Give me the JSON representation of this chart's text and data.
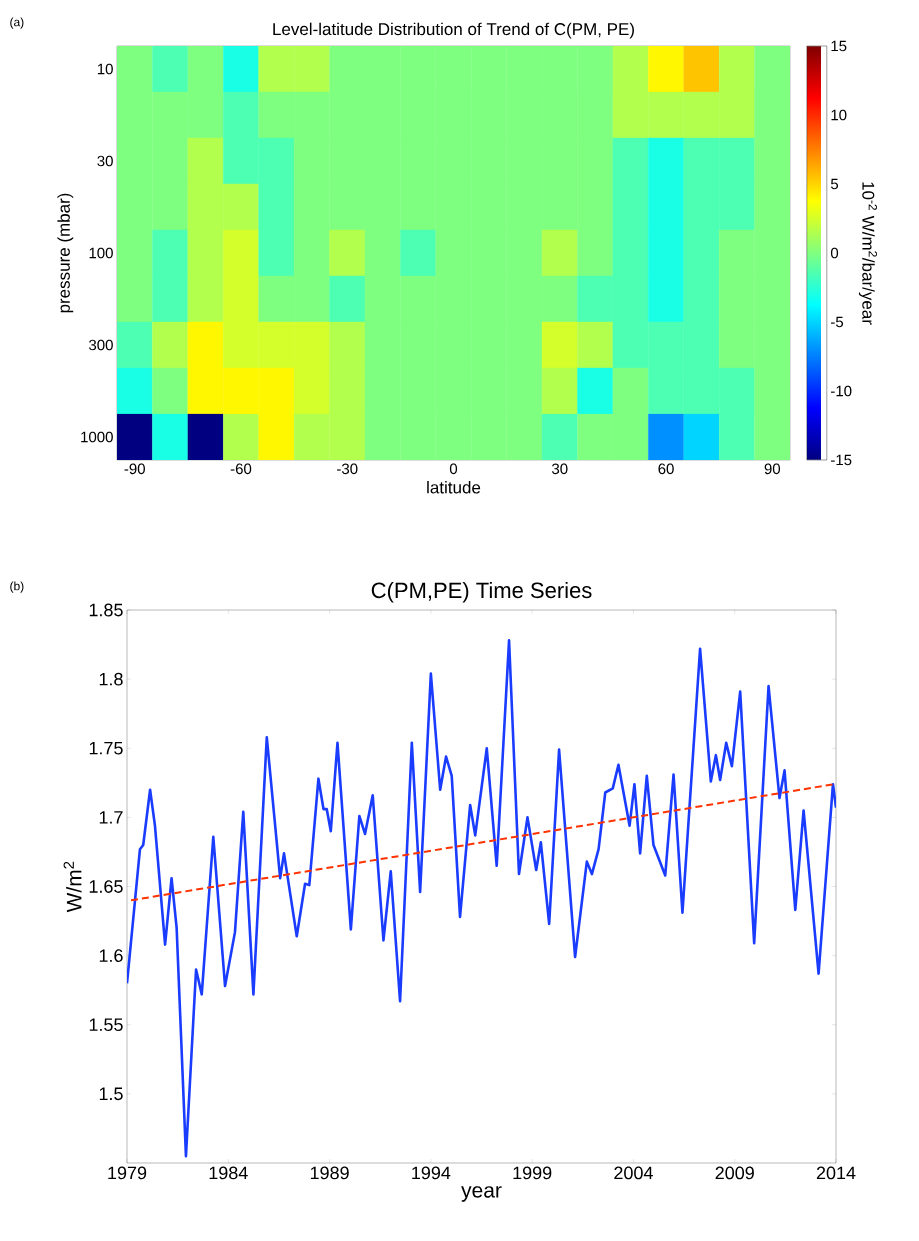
{
  "chart_data": [
    {
      "type": "heatmap",
      "title": "Level-latitude Distribution of Trend of C(PM, PE)",
      "xlabel": "latitude",
      "ylabel": "pressure (mbar)",
      "clabel": "10$^{-2}$ W/m$^{2}$/bar/year",
      "annotations": [
        "(a)"
      ],
      "categories": [
        "-90",
        null,
        null,
        "-60",
        null,
        null,
        "-30",
        null,
        null,
        "0",
        null,
        null,
        "30",
        null,
        null,
        "60",
        null,
        null,
        "90"
      ],
      "y_categories": [
        "10",
        null,
        "30",
        null,
        "100",
        null,
        "300",
        null,
        "1000"
      ],
      "cells": [
        [
          0,
          -1.5,
          0,
          -3,
          1.5,
          1.5,
          0,
          0,
          0,
          0,
          0,
          0,
          0,
          0,
          1.5,
          4,
          5.5,
          1.5,
          0
        ],
        [
          0,
          0,
          0,
          -1.5,
          0,
          0,
          0,
          0,
          0,
          0,
          0,
          0,
          0,
          0,
          1.5,
          1.5,
          1.5,
          1.5,
          0
        ],
        [
          0,
          0,
          1.5,
          -1.5,
          -1.5,
          0,
          0,
          0,
          0,
          0,
          0,
          0,
          0,
          0,
          -1.5,
          -3,
          -1.5,
          -1.5,
          0
        ],
        [
          0,
          0,
          1.5,
          1.5,
          -1.5,
          0,
          0,
          0,
          0,
          0,
          0,
          0,
          0,
          0,
          -1.5,
          -3,
          -1.5,
          -1.5,
          0
        ],
        [
          0,
          -1.5,
          1.5,
          2.5,
          -1.5,
          0,
          1.5,
          0,
          -1.5,
          0,
          0,
          0,
          1.5,
          0,
          -1.5,
          -3,
          -1.5,
          0,
          0
        ],
        [
          0,
          -1.5,
          1.5,
          2.5,
          0,
          0,
          -1.5,
          0,
          0,
          0,
          0,
          0,
          0,
          -1.5,
          -1.5,
          -3,
          -1.5,
          0,
          0
        ],
        [
          -1.5,
          1.5,
          4,
          2.5,
          2.5,
          2.5,
          1.5,
          0,
          0,
          0,
          0,
          0,
          2.5,
          1.5,
          -1.5,
          -1.5,
          -1.5,
          0,
          0
        ],
        [
          -3,
          0,
          4,
          4,
          4,
          2.5,
          1.5,
          0,
          0,
          0,
          0,
          0,
          1.5,
          -3,
          0,
          -1.5,
          -1.5,
          -1.5,
          0
        ],
        [
          -15,
          -3,
          -15,
          1.5,
          4,
          1.5,
          1.5,
          0,
          0,
          0,
          0,
          0,
          -1.5,
          0,
          0,
          -7,
          -5,
          -1.5,
          0
        ]
      ],
      "clim": [
        -15,
        15
      ],
      "cticks": [
        -15,
        -10,
        -5,
        0,
        5,
        10,
        15
      ]
    },
    {
      "type": "line",
      "title": "C(PM,PE) Time Series",
      "xlabel": "year",
      "ylabel": "W/m$^{2}$",
      "annotations": [
        "(b)"
      ],
      "xlim": [
        1979,
        2014
      ],
      "xticks": [
        1979,
        1984,
        1989,
        1994,
        1999,
        2004,
        2009,
        2014
      ],
      "ylim": [
        1.45,
        1.85
      ],
      "yticks": [
        1.5,
        1.55,
        1.6,
        1.65,
        1.7,
        1.75,
        1.8,
        1.85
      ],
      "series": [
        {
          "color": "#1a3cff",
          "line_style": "solid",
          "x": [
            1979.0,
            1979.64,
            1979.8,
            1980.14,
            1980.38,
            1980.88,
            1981.2,
            1981.45,
            1981.91,
            1982.41,
            1982.69,
            1983.26,
            1983.84,
            1984.33,
            1984.74,
            1985.24,
            1985.9,
            1986.56,
            1986.75,
            1987.38,
            1987.79,
            1988.0,
            1988.45,
            1988.7,
            1988.86,
            1989.06,
            1989.39,
            1990.05,
            1990.47,
            1990.75,
            1991.13,
            1991.66,
            1992.02,
            1992.48,
            1993.06,
            1993.47,
            1994.0,
            1994.46,
            1994.75,
            1995.03,
            1995.44,
            1995.94,
            1996.19,
            1996.76,
            1997.25,
            1997.86,
            1998.35,
            1998.77,
            1999.2,
            1999.43,
            1999.84,
            2000.33,
            2001.12,
            2001.7,
            2001.95,
            2002.28,
            2002.61,
            2002.98,
            2003.26,
            2003.81,
            2004.05,
            2004.33,
            2004.66,
            2004.99,
            2005.57,
            2005.98,
            2006.42,
            2007.29,
            2007.82,
            2008.07,
            2008.28,
            2008.58,
            2008.86,
            2009.27,
            2009.96,
            2010.67,
            2011.21,
            2011.46,
            2011.99,
            2012.4,
            2013.14,
            2013.85,
            2014.0
          ],
          "values": [
            1.58,
            1.677,
            1.68,
            1.72,
            1.694,
            1.608,
            1.656,
            1.62,
            1.455,
            1.59,
            1.572,
            1.686,
            1.578,
            1.617,
            1.704,
            1.572,
            1.758,
            1.656,
            1.674,
            1.614,
            1.652,
            1.651,
            1.728,
            1.706,
            1.706,
            1.69,
            1.754,
            1.619,
            1.701,
            1.688,
            1.716,
            1.611,
            1.661,
            1.567,
            1.754,
            1.646,
            1.804,
            1.72,
            1.744,
            1.73,
            1.628,
            1.709,
            1.687,
            1.75,
            1.665,
            1.828,
            1.659,
            1.7,
            1.662,
            1.682,
            1.623,
            1.749,
            1.599,
            1.668,
            1.659,
            1.677,
            1.718,
            1.721,
            1.738,
            1.694,
            1.724,
            1.674,
            1.73,
            1.68,
            1.658,
            1.731,
            1.631,
            1.822,
            1.726,
            1.745,
            1.727,
            1.754,
            1.737,
            1.791,
            1.609,
            1.795,
            1.714,
            1.734,
            1.633,
            1.705,
            1.587,
            1.724,
            1.707
          ]
        },
        {
          "color": "#ff3300",
          "line_style": "dashed",
          "x": [
            1979.2,
            2013.9
          ],
          "values": [
            1.64,
            1.724
          ]
        }
      ]
    }
  ]
}
